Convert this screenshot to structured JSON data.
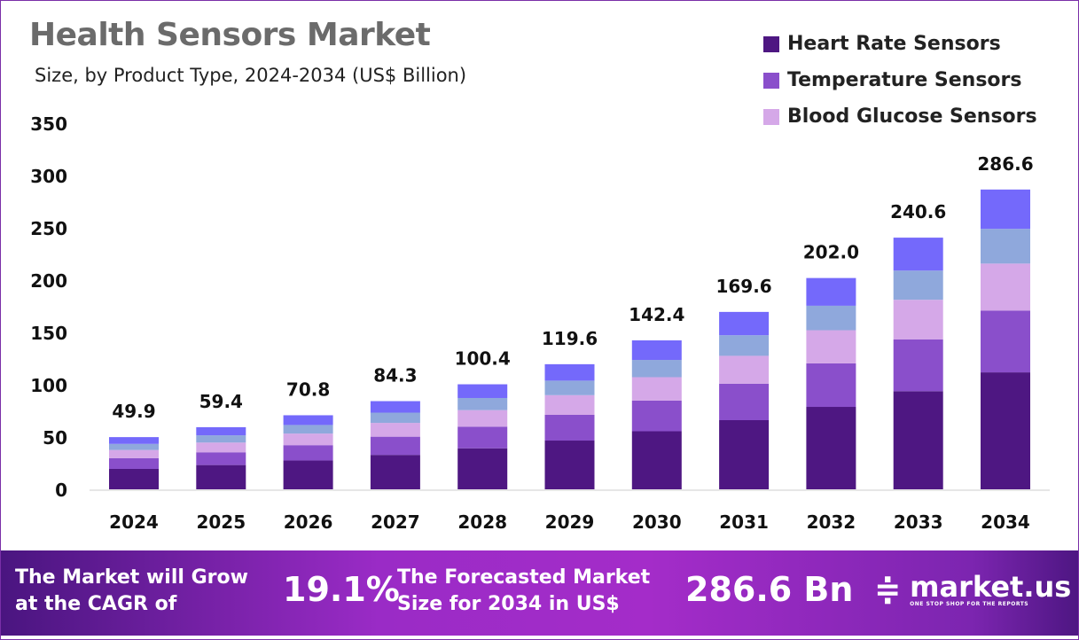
{
  "chart_data": {
    "type": "bar",
    "stacked": true,
    "title": "Health Sensors Market",
    "subtitle": "Size, by Product Type, 2024-2034 (US$ Billion)",
    "categories": [
      "2024",
      "2025",
      "2026",
      "2027",
      "2028",
      "2029",
      "2030",
      "2031",
      "2032",
      "2033",
      "2034"
    ],
    "totals": [
      "49.9",
      "59.4",
      "70.8",
      "84.3",
      "100.4",
      "119.6",
      "142.4",
      "169.6",
      "202.0",
      "240.6",
      "286.6"
    ],
    "series": [
      {
        "name": "Heart Rate Sensors",
        "color": "#4e1782",
        "values": [
          19.5,
          23.2,
          27.6,
          32.9,
          39.2,
          46.6,
          55.5,
          66.1,
          78.8,
          93.8,
          111.8
        ]
      },
      {
        "name": "Temperature Sensors",
        "color": "#8a4fcb",
        "values": [
          10.3,
          12.2,
          14.6,
          17.4,
          20.7,
          24.6,
          29.3,
          34.9,
          41.6,
          49.6,
          59.0
        ]
      },
      {
        "name": "Blood Glucose Sensors",
        "color": "#d5a8e8",
        "values": [
          7.8,
          9.3,
          11.1,
          13.2,
          15.8,
          18.8,
          22.4,
          26.6,
          31.7,
          37.8,
          45.0
        ]
      },
      {
        "name": "",
        "color": "#8fa8dc",
        "values": [
          5.8,
          6.9,
          8.2,
          9.8,
          11.6,
          13.9,
          16.5,
          19.7,
          23.4,
          27.9,
          33.2
        ]
      },
      {
        "name": "",
        "color": "#7469fb",
        "values": [
          6.5,
          7.8,
          9.3,
          11.0,
          13.1,
          15.7,
          18.7,
          22.3,
          26.5,
          31.5,
          37.6
        ]
      }
    ],
    "yticks": [
      "0",
      "50",
      "100",
      "150",
      "200",
      "250",
      "300",
      "350"
    ],
    "ylim": [
      0,
      350
    ],
    "grid": false,
    "legend": "top-right"
  },
  "banner": {
    "cagr_text_1": "The Market will Grow",
    "cagr_text_2": "at the CAGR of",
    "cagr_value": "19.1%",
    "forecast_text_1": "The Forecasted Market",
    "forecast_text_2": "Size for 2034 in US$",
    "forecast_value": "286.6 Bn",
    "logo_name": "market.us",
    "logo_tagline": "ONE STOP SHOP FOR THE REPORTS"
  }
}
